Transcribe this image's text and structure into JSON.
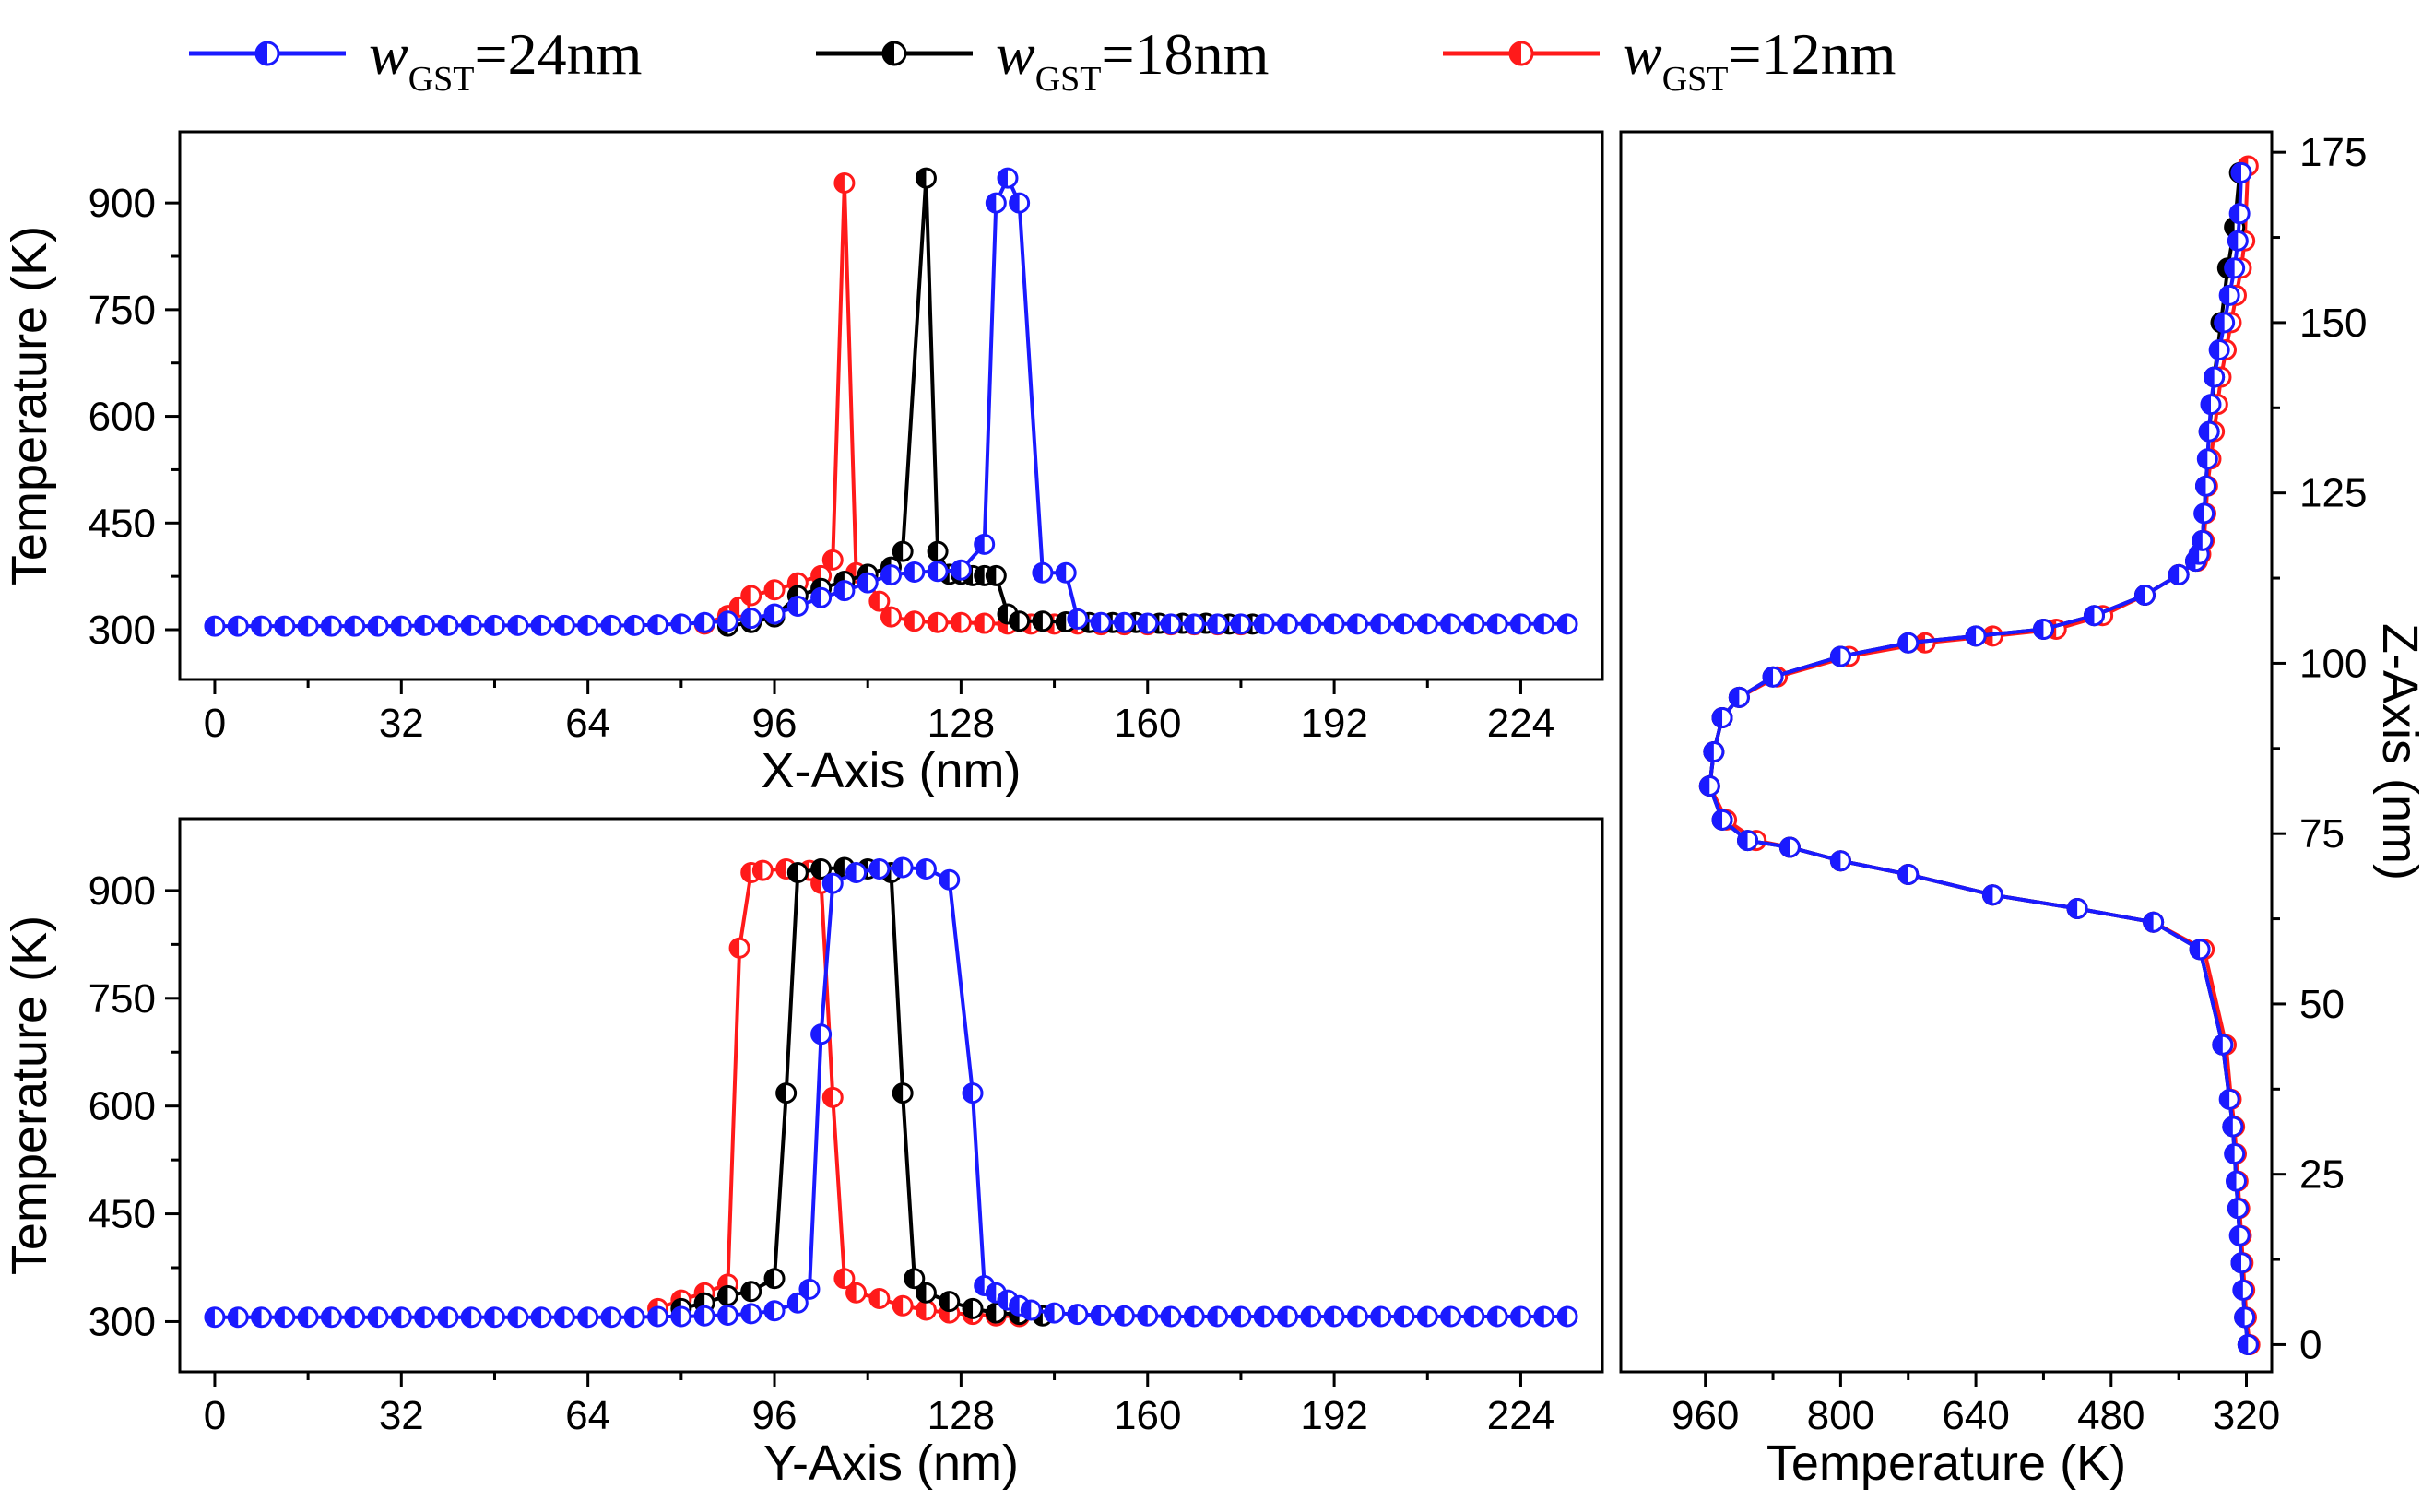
{
  "legend": [
    {
      "name": "w",
      "sub": "GST",
      "value": "=24nm",
      "color": "#1a1aff"
    },
    {
      "name": "w",
      "sub": "GST",
      "value": "=18nm",
      "color": "#000000"
    },
    {
      "name": "w",
      "sub": "GST",
      "value": "=12nm",
      "color": "#ff1a1a"
    }
  ],
  "chart_data": [
    {
      "type": "line",
      "id": "x-axis-profile",
      "xlabel": "X-Axis (nm)",
      "ylabel": "Temperature (K)",
      "xlim": [
        -6,
        238
      ],
      "ylim": [
        230,
        1000
      ],
      "xticks": [
        0,
        32,
        64,
        96,
        128,
        160,
        192,
        224
      ],
      "yticks": [
        300,
        450,
        600,
        750,
        900
      ],
      "series": [
        {
          "name": "wGST=24nm",
          "color": "#1a1aff",
          "x": [
            0,
            4,
            8,
            12,
            16,
            20,
            24,
            28,
            32,
            36,
            40,
            44,
            48,
            52,
            56,
            60,
            64,
            68,
            72,
            76,
            80,
            84,
            88,
            92,
            96,
            100,
            104,
            108,
            112,
            116,
            120,
            124,
            128,
            132,
            134,
            136,
            138,
            142,
            146,
            148,
            152,
            156,
            160,
            164,
            168,
            172,
            176,
            180,
            184,
            188,
            192,
            196,
            200,
            204,
            208,
            212,
            216,
            220,
            224,
            228,
            232
          ],
          "y": [
            305,
            305,
            305,
            305,
            305,
            305,
            305,
            305,
            305,
            306,
            306,
            306,
            306,
            306,
            306,
            306,
            306,
            306,
            306,
            307,
            308,
            310,
            312,
            316,
            322,
            333,
            345,
            355,
            366,
            377,
            381,
            382,
            384,
            420,
            900,
            935,
            900,
            380,
            380,
            315,
            310,
            310,
            309,
            308,
            308,
            308,
            308,
            308,
            308,
            308,
            308,
            308,
            308,
            308,
            308,
            308,
            308,
            308,
            308,
            308,
            308
          ]
        },
        {
          "name": "wGST=18nm",
          "color": "#000000",
          "x": [
            88,
            92,
            96,
            100,
            104,
            108,
            112,
            116,
            118,
            122,
            124,
            126,
            128,
            130,
            132,
            134,
            136,
            138,
            142,
            146,
            150,
            154,
            158,
            162,
            166,
            170,
            174,
            178
          ],
          "y": [
            305,
            310,
            318,
            348,
            358,
            368,
            378,
            388,
            410,
            935,
            410,
            378,
            378,
            376,
            376,
            376,
            322,
            312,
            312,
            311,
            310,
            310,
            310,
            309,
            309,
            309,
            308,
            308
          ]
        },
        {
          "name": "wGST=12nm",
          "color": "#ff1a1a",
          "x": [
            84,
            88,
            90,
            92,
            96,
            100,
            104,
            106,
            108,
            110,
            112,
            114,
            116,
            120,
            124,
            128,
            132,
            136,
            140,
            144,
            148,
            152,
            156,
            160,
            164,
            168,
            172,
            176
          ],
          "y": [
            308,
            320,
            332,
            348,
            356,
            366,
            376,
            398,
            928,
            380,
            370,
            340,
            318,
            312,
            310,
            310,
            309,
            308,
            308,
            308,
            308,
            307,
            307,
            307,
            307,
            307,
            307,
            307
          ]
        }
      ]
    },
    {
      "type": "line",
      "id": "y-axis-profile",
      "xlabel": "Y-Axis (nm)",
      "ylabel": "Temperature (K)",
      "xlim": [
        -6,
        238
      ],
      "ylim": [
        230,
        1000
      ],
      "xticks": [
        0,
        32,
        64,
        96,
        128,
        160,
        192,
        224
      ],
      "yticks": [
        300,
        450,
        600,
        750,
        900
      ],
      "series": [
        {
          "name": "wGST=24nm",
          "color": "#1a1aff",
          "x": [
            0,
            4,
            8,
            12,
            16,
            20,
            24,
            28,
            32,
            36,
            40,
            44,
            48,
            52,
            56,
            60,
            64,
            68,
            72,
            76,
            80,
            84,
            88,
            92,
            96,
            100,
            102,
            104,
            106,
            110,
            114,
            118,
            122,
            126,
            130,
            132,
            134,
            136,
            138,
            140,
            144,
            148,
            152,
            156,
            160,
            164,
            168,
            172,
            176,
            180,
            184,
            188,
            192,
            196,
            200,
            204,
            208,
            212,
            216,
            220,
            224,
            228,
            232
          ],
          "y": [
            306,
            306,
            306,
            306,
            306,
            306,
            306,
            306,
            306,
            306,
            306,
            306,
            306,
            306,
            306,
            306,
            306,
            306,
            306,
            307,
            307,
            308,
            309,
            311,
            315,
            326,
            345,
            700,
            910,
            925,
            930,
            932,
            930,
            915,
            618,
            350,
            340,
            330,
            322,
            316,
            312,
            310,
            309,
            308,
            308,
            307,
            307,
            307,
            307,
            307,
            307,
            307,
            307,
            307,
            307,
            307,
            307,
            307,
            307,
            307,
            307,
            307,
            307
          ]
        },
        {
          "name": "wGST=18nm",
          "color": "#000000",
          "x": [
            80,
            84,
            88,
            92,
            96,
            98,
            100,
            104,
            108,
            112,
            116,
            118,
            120,
            122,
            126,
            130,
            134,
            138,
            142
          ],
          "y": [
            318,
            326,
            336,
            342,
            360,
            618,
            925,
            930,
            932,
            930,
            925,
            618,
            360,
            340,
            328,
            318,
            312,
            310,
            308
          ]
        },
        {
          "name": "wGST=12nm",
          "color": "#ff1a1a",
          "x": [
            76,
            80,
            84,
            88,
            90,
            92,
            94,
            98,
            102,
            104,
            106,
            108,
            110,
            114,
            118,
            122,
            126,
            130,
            134,
            138
          ],
          "y": [
            318,
            330,
            340,
            352,
            820,
            925,
            928,
            930,
            928,
            910,
            612,
            360,
            340,
            332,
            322,
            316,
            312,
            310,
            308,
            307
          ]
        }
      ]
    },
    {
      "type": "line",
      "id": "z-axis-profile",
      "orientation": "vertical",
      "xlabel": "Temperature (K)",
      "ylabel": "Z-Axis (nm)",
      "xlim": [
        1060,
        290
      ],
      "ylim": [
        -4,
        178
      ],
      "xticks": [
        960,
        800,
        640,
        480,
        320
      ],
      "yticks": [
        0,
        25,
        50,
        75,
        100,
        125,
        150,
        175
      ],
      "series": [
        {
          "name": "wGST=24nm",
          "color": "#1a1aff",
          "temperature": [
            318,
            322,
            324,
            326,
            328,
            330,
            332,
            334,
            336,
            340,
            348,
            375,
            430,
            520,
            620,
            720,
            800,
            860,
            910,
            940,
            955,
            950,
            940,
            920,
            880,
            800,
            720,
            640,
            560,
            500,
            440,
            400,
            380,
            376,
            372,
            370,
            368,
            366,
            364,
            362,
            358,
            352,
            346,
            340,
            334,
            330,
            328,
            326
          ],
          "z": [
            0,
            4,
            8,
            12,
            16,
            20,
            24,
            28,
            32,
            36,
            44,
            58,
            62,
            64,
            66,
            69,
            71,
            73,
            74,
            77,
            82,
            87,
            92,
            95,
            98,
            101,
            103,
            104,
            105,
            107,
            110,
            113,
            115,
            116,
            118,
            122,
            126,
            130,
            134,
            138,
            142,
            146,
            150,
            154,
            158,
            162,
            166,
            172
          ]
        },
        {
          "name": "wGST=18nm",
          "color": "#000000",
          "temperature": [
            318,
            322,
            326,
            330,
            336,
            348,
            375,
            430,
            520,
            620,
            720,
            800,
            860,
            910,
            940,
            955,
            950,
            940,
            920,
            880,
            800,
            720,
            640,
            560,
            500,
            440,
            400,
            380,
            372,
            368,
            364,
            358,
            350,
            342,
            334,
            328
          ],
          "z": [
            0,
            4,
            12,
            20,
            32,
            44,
            58,
            62,
            64,
            66,
            69,
            71,
            73,
            74,
            77,
            82,
            87,
            92,
            95,
            98,
            101,
            103,
            104,
            105,
            107,
            110,
            113,
            115,
            118,
            126,
            134,
            142,
            150,
            158,
            164,
            172
          ]
        },
        {
          "name": "wGST=12nm",
          "color": "#ff1a1a",
          "temperature": [
            316,
            320,
            322,
            324,
            326,
            328,
            330,
            332,
            334,
            338,
            344,
            370,
            430,
            520,
            620,
            720,
            800,
            860,
            900,
            935,
            955,
            950,
            940,
            920,
            875,
            790,
            700,
            620,
            545,
            490,
            440,
            400,
            378,
            374,
            370,
            368,
            366,
            362,
            358,
            354,
            350,
            344,
            338,
            332,
            326,
            322,
            318
          ],
          "z": [
            0,
            4,
            8,
            12,
            16,
            20,
            24,
            28,
            32,
            36,
            44,
            58,
            62,
            64,
            66,
            69,
            71,
            73,
            74,
            77,
            82,
            87,
            92,
            95,
            98,
            101,
            103,
            104,
            105,
            107,
            110,
            113,
            115,
            116,
            118,
            122,
            126,
            130,
            134,
            138,
            142,
            146,
            150,
            154,
            158,
            162,
            173
          ]
        }
      ]
    }
  ]
}
